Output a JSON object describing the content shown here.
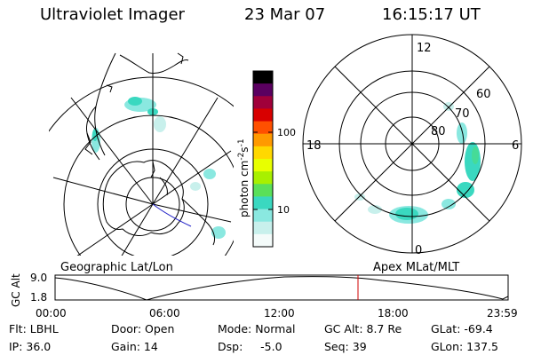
{
  "header": {
    "title": "Ultraviolet Imager",
    "date": "23 Mar 07",
    "time": "16:15:17 UT"
  },
  "geographic_panel": {
    "label": "Geographic Lat/Lon"
  },
  "polar_panel": {
    "label": "Apex MLat/MLT",
    "lat_labels": [
      "80",
      "70",
      "60"
    ],
    "mlt_labels": [
      "12",
      "18",
      "6",
      "0"
    ]
  },
  "colorbar": {
    "unit_label": "photon cm",
    "unit_exp1": "-2",
    "unit_mid": "s",
    "unit_exp2": "-1",
    "ticks": [
      "100",
      "10"
    ],
    "colors": [
      "#000000",
      "#5a0060",
      "#a0003a",
      "#d80000",
      "#ff5000",
      "#ff9a00",
      "#ffd800",
      "#e8ff00",
      "#a8f000",
      "#5ae05a",
      "#3ad8c0",
      "#8ae8e0",
      "#c8f0ec",
      "#f4fbfa"
    ]
  },
  "altitude_plot": {
    "ylabel": "GC Alt",
    "y_ticks": [
      "9.0",
      "1.8"
    ],
    "x_ticks": [
      "00:00",
      "06:00",
      "12:00",
      "18:00",
      "23:59"
    ],
    "current_time_color": "#d00000"
  },
  "info": {
    "filter": "Flt: LBHL",
    "ip": "IP: 36.0",
    "door": "Door: Open",
    "gain": "Gain: 14",
    "mode": "Mode: Normal",
    "dsp": "Dsp:     -5.0",
    "gc_alt": "GC Alt: 8.7 Re",
    "seq": "Seq: 39",
    "glat": "GLat: -69.4",
    "glon": "GLon: 137.5"
  },
  "aurora_color": "#3ad8c0"
}
